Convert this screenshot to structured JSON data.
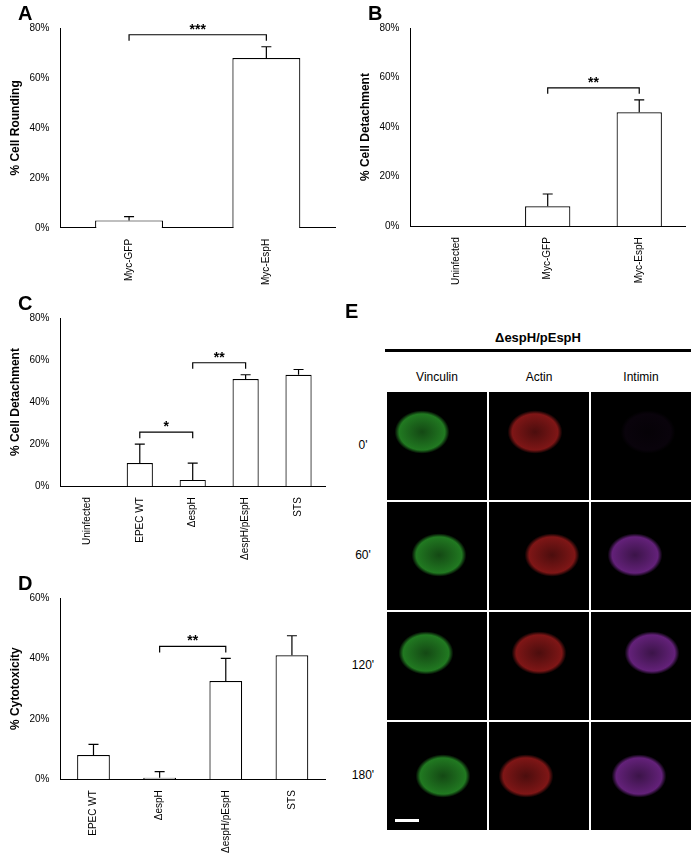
{
  "chart_data": [
    {
      "panel": "A",
      "type": "bar",
      "categories": [
        "Myc-GFP",
        "Myc-EspH"
      ],
      "values": [
        3,
        68
      ],
      "errors": [
        1.5,
        4.5
      ],
      "color": "#ffffff",
      "ylabel": "% Cell Rounding",
      "ylim": [
        0,
        80
      ],
      "yticks": [
        {
          "value": 0,
          "label": "0%"
        },
        {
          "value": 20,
          "label": "20%"
        },
        {
          "value": 40,
          "label": "40%"
        },
        {
          "value": 60,
          "label": "60%"
        },
        {
          "value": 80,
          "label": "80%"
        }
      ],
      "grid": false,
      "significance": [
        {
          "between": [
            "Myc-GFP",
            "Myc-EspH"
          ],
          "label": "***"
        }
      ]
    },
    {
      "panel": "B",
      "type": "bar",
      "categories": [
        "Uninfected",
        "Myc-GFP",
        "Myc-EspH"
      ],
      "values": [
        0,
        8,
        46
      ],
      "errors": [
        0,
        5,
        5
      ],
      "color": "#ffffff",
      "ylabel": "% Cell Detachment",
      "ylim": [
        0,
        80
      ],
      "yticks": [
        {
          "value": 0,
          "label": "0%"
        },
        {
          "value": 20,
          "label": "20%"
        },
        {
          "value": 40,
          "label": "40%"
        },
        {
          "value": 60,
          "label": "60%"
        },
        {
          "value": 80,
          "label": "80%"
        }
      ],
      "grid": false,
      "significance": [
        {
          "between": [
            "Myc-GFP",
            "Myc-EspH"
          ],
          "label": "**"
        }
      ]
    },
    {
      "panel": "C",
      "type": "bar",
      "categories": [
        "Uninfected",
        "EPEC WT",
        "ΔespH",
        "ΔespH/pEspH",
        "STS"
      ],
      "values": [
        0,
        11,
        3,
        51,
        53
      ],
      "errors": [
        0,
        9,
        8,
        2,
        2.5
      ],
      "color": "#ffffff",
      "ylabel": "% Cell Detachment",
      "ylim": [
        0,
        80
      ],
      "yticks": [
        {
          "value": 0,
          "label": "0%"
        },
        {
          "value": 20,
          "label": "20%"
        },
        {
          "value": 40,
          "label": "40%"
        },
        {
          "value": 60,
          "label": "60%"
        },
        {
          "value": 80,
          "label": "80%"
        }
      ],
      "grid": false,
      "significance": [
        {
          "between": [
            "EPEC WT",
            "ΔespH"
          ],
          "label": "*"
        },
        {
          "between": [
            "ΔespH",
            "ΔespH/pEspH"
          ],
          "label": "**"
        }
      ]
    },
    {
      "panel": "D",
      "type": "bar",
      "categories": [
        "EPEC WT",
        "ΔespH",
        "ΔespH/pEspH",
        "STS"
      ],
      "values": [
        8,
        0.5,
        32.5,
        41
      ],
      "errors": [
        3.5,
        2,
        7.5,
        6.5
      ],
      "color": "#ffffff",
      "ylabel": "% Cytotoxicity",
      "ylim": [
        0,
        60
      ],
      "yticks": [
        {
          "value": 0,
          "label": "0%"
        },
        {
          "value": 20,
          "label": "20%"
        },
        {
          "value": 40,
          "label": "40%"
        },
        {
          "value": 60,
          "label": "60%"
        }
      ],
      "grid": false,
      "significance": [
        {
          "between": [
            "ΔespH",
            "ΔespH/pEspH"
          ],
          "label": "**"
        }
      ]
    }
  ],
  "panel_e": {
    "panel": "E",
    "title": "ΔespH/pEspH",
    "columns": [
      "Vinculin",
      "Actin",
      "Intimin"
    ],
    "rows": [
      "0'",
      "60'",
      "120'",
      "180'"
    ]
  }
}
